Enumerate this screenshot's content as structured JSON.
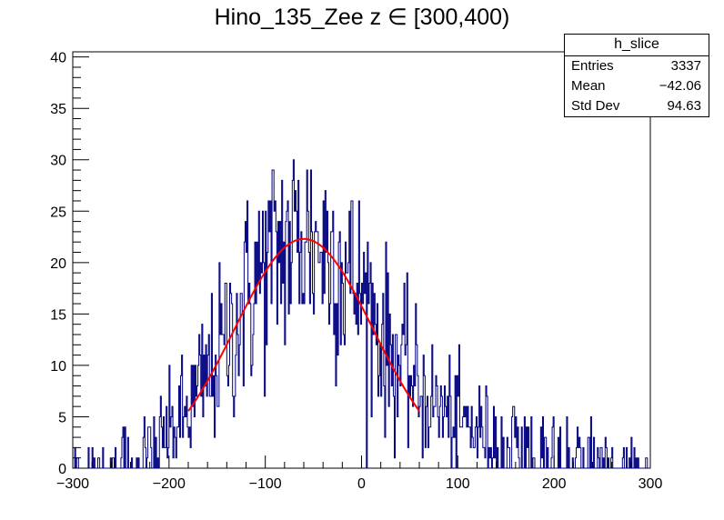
{
  "chart_data": {
    "type": "histogram",
    "title": "Hino_135_Zee z  ∈ [300,400)",
    "xlim": [
      -300,
      300
    ],
    "ylim": [
      0,
      40.5
    ],
    "x_ticks": [
      -300,
      -200,
      -100,
      0,
      100,
      200,
      300
    ],
    "y_ticks": [
      0,
      5,
      10,
      15,
      20,
      25,
      30,
      35,
      40
    ],
    "bin_width": 1,
    "stats_box": {
      "name": "h_slice",
      "rows": [
        {
          "label": "Entries",
          "value": "3337"
        },
        {
          "label": "Mean",
          "value": "−42.06"
        },
        {
          "label": "Std Dev",
          "value": "94.63"
        }
      ]
    },
    "fit": {
      "type": "gaussian",
      "amplitude": 22.3,
      "mean": -60,
      "sigma": 72,
      "range": [
        -180,
        60
      ],
      "color": "#ff0000"
    },
    "histogram_color": "#000080",
    "envelope": {
      "description_free_params": true,
      "points_x": [
        -300,
        -270,
        -240,
        -210,
        -180,
        -150,
        -120,
        -90,
        -60,
        -30,
        0,
        30,
        60,
        90,
        120,
        150,
        180,
        210,
        240,
        270,
        300
      ],
      "points_y": [
        0.5,
        0.9,
        1.6,
        3.0,
        5.5,
        10.5,
        16.5,
        21.0,
        22.5,
        21.0,
        17.0,
        11.5,
        7.5,
        5.0,
        3.6,
        2.8,
        2.3,
        1.8,
        1.3,
        0.9,
        0.5
      ]
    }
  }
}
